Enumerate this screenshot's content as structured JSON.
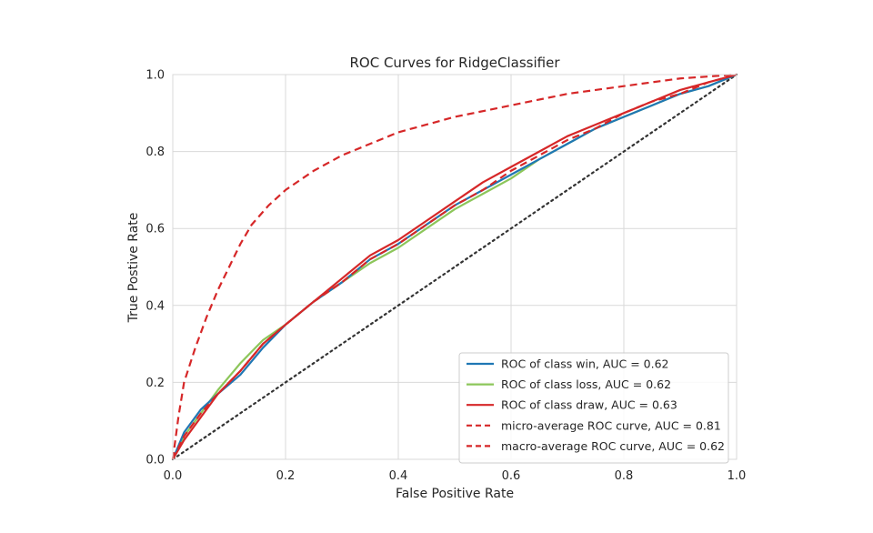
{
  "chart_data": {
    "type": "line",
    "title": "ROC Curves for RidgeClassifier",
    "xlabel": "False Positive Rate",
    "ylabel": "True Postive Rate",
    "xlim": [
      0.0,
      1.0
    ],
    "ylim": [
      0.0,
      1.0
    ],
    "x_ticks": [
      "0.0",
      "0.2",
      "0.4",
      "0.6",
      "0.8",
      "1.0"
    ],
    "y_ticks": [
      "0.0",
      "0.2",
      "0.4",
      "0.6",
      "0.8",
      "1.0"
    ],
    "grid": true,
    "legend_position": "lower-right",
    "series": [
      {
        "name": "ROC of class win, AUC = 0.62",
        "color": "#1f77b4",
        "style": "solid",
        "points": [
          [
            0,
            0
          ],
          [
            0.02,
            0.07
          ],
          [
            0.05,
            0.13
          ],
          [
            0.08,
            0.17
          ],
          [
            0.12,
            0.22
          ],
          [
            0.16,
            0.29
          ],
          [
            0.2,
            0.35
          ],
          [
            0.25,
            0.41
          ],
          [
            0.3,
            0.46
          ],
          [
            0.35,
            0.52
          ],
          [
            0.4,
            0.56
          ],
          [
            0.45,
            0.61
          ],
          [
            0.5,
            0.66
          ],
          [
            0.55,
            0.7
          ],
          [
            0.6,
            0.74
          ],
          [
            0.65,
            0.78
          ],
          [
            0.7,
            0.82
          ],
          [
            0.75,
            0.86
          ],
          [
            0.8,
            0.89
          ],
          [
            0.85,
            0.92
          ],
          [
            0.9,
            0.95
          ],
          [
            0.95,
            0.97
          ],
          [
            1.0,
            1.0
          ]
        ]
      },
      {
        "name": "ROC of class loss, AUC = 0.62",
        "color": "#8cc65a",
        "style": "solid",
        "points": [
          [
            0,
            0
          ],
          [
            0.02,
            0.06
          ],
          [
            0.05,
            0.12
          ],
          [
            0.08,
            0.18
          ],
          [
            0.12,
            0.25
          ],
          [
            0.16,
            0.31
          ],
          [
            0.2,
            0.35
          ],
          [
            0.25,
            0.41
          ],
          [
            0.3,
            0.46
          ],
          [
            0.35,
            0.51
          ],
          [
            0.4,
            0.55
          ],
          [
            0.45,
            0.6
          ],
          [
            0.5,
            0.65
          ],
          [
            0.55,
            0.69
          ],
          [
            0.6,
            0.73
          ],
          [
            0.65,
            0.78
          ],
          [
            0.7,
            0.82
          ],
          [
            0.75,
            0.86
          ],
          [
            0.8,
            0.89
          ],
          [
            0.85,
            0.92
          ],
          [
            0.9,
            0.95
          ],
          [
            0.95,
            0.97
          ],
          [
            1.0,
            1.0
          ]
        ]
      },
      {
        "name": "ROC of class draw, AUC = 0.63",
        "color": "#d62728",
        "style": "solid",
        "points": [
          [
            0,
            0
          ],
          [
            0.02,
            0.05
          ],
          [
            0.05,
            0.11
          ],
          [
            0.08,
            0.17
          ],
          [
            0.12,
            0.23
          ],
          [
            0.16,
            0.3
          ],
          [
            0.2,
            0.35
          ],
          [
            0.25,
            0.41
          ],
          [
            0.3,
            0.47
          ],
          [
            0.35,
            0.53
          ],
          [
            0.4,
            0.57
          ],
          [
            0.45,
            0.62
          ],
          [
            0.5,
            0.67
          ],
          [
            0.55,
            0.72
          ],
          [
            0.6,
            0.76
          ],
          [
            0.65,
            0.8
          ],
          [
            0.7,
            0.84
          ],
          [
            0.75,
            0.87
          ],
          [
            0.8,
            0.9
          ],
          [
            0.85,
            0.93
          ],
          [
            0.9,
            0.96
          ],
          [
            0.95,
            0.98
          ],
          [
            1.0,
            1.0
          ]
        ]
      },
      {
        "name": "micro-average ROC curve, AUC = 0.81",
        "color": "#d62728",
        "style": "dashed",
        "points": [
          [
            0,
            0
          ],
          [
            0.01,
            0.11
          ],
          [
            0.02,
            0.2
          ],
          [
            0.04,
            0.29
          ],
          [
            0.06,
            0.37
          ],
          [
            0.08,
            0.44
          ],
          [
            0.1,
            0.5
          ],
          [
            0.12,
            0.56
          ],
          [
            0.14,
            0.61
          ],
          [
            0.17,
            0.66
          ],
          [
            0.2,
            0.7
          ],
          [
            0.25,
            0.75
          ],
          [
            0.3,
            0.79
          ],
          [
            0.35,
            0.82
          ],
          [
            0.4,
            0.85
          ],
          [
            0.45,
            0.87
          ],
          [
            0.5,
            0.89
          ],
          [
            0.6,
            0.92
          ],
          [
            0.7,
            0.95
          ],
          [
            0.8,
            0.97
          ],
          [
            0.9,
            0.99
          ],
          [
            1.0,
            1.0
          ]
        ]
      },
      {
        "name": "macro-average ROC curve, AUC = 0.62",
        "color": "#d62728",
        "style": "dashed",
        "points": [
          [
            0,
            0
          ],
          [
            0.02,
            0.06
          ],
          [
            0.05,
            0.12
          ],
          [
            0.08,
            0.17
          ],
          [
            0.12,
            0.23
          ],
          [
            0.16,
            0.3
          ],
          [
            0.2,
            0.35
          ],
          [
            0.25,
            0.41
          ],
          [
            0.3,
            0.46
          ],
          [
            0.35,
            0.52
          ],
          [
            0.4,
            0.56
          ],
          [
            0.45,
            0.61
          ],
          [
            0.5,
            0.66
          ],
          [
            0.55,
            0.7
          ],
          [
            0.6,
            0.75
          ],
          [
            0.65,
            0.79
          ],
          [
            0.7,
            0.83
          ],
          [
            0.75,
            0.86
          ],
          [
            0.8,
            0.9
          ],
          [
            0.85,
            0.93
          ],
          [
            0.9,
            0.95
          ],
          [
            0.95,
            0.98
          ],
          [
            1.0,
            1.0
          ]
        ]
      },
      {
        "name": "",
        "color": "#333333",
        "style": "dotted",
        "points": [
          [
            0,
            0
          ],
          [
            1,
            1
          ]
        ]
      }
    ]
  }
}
